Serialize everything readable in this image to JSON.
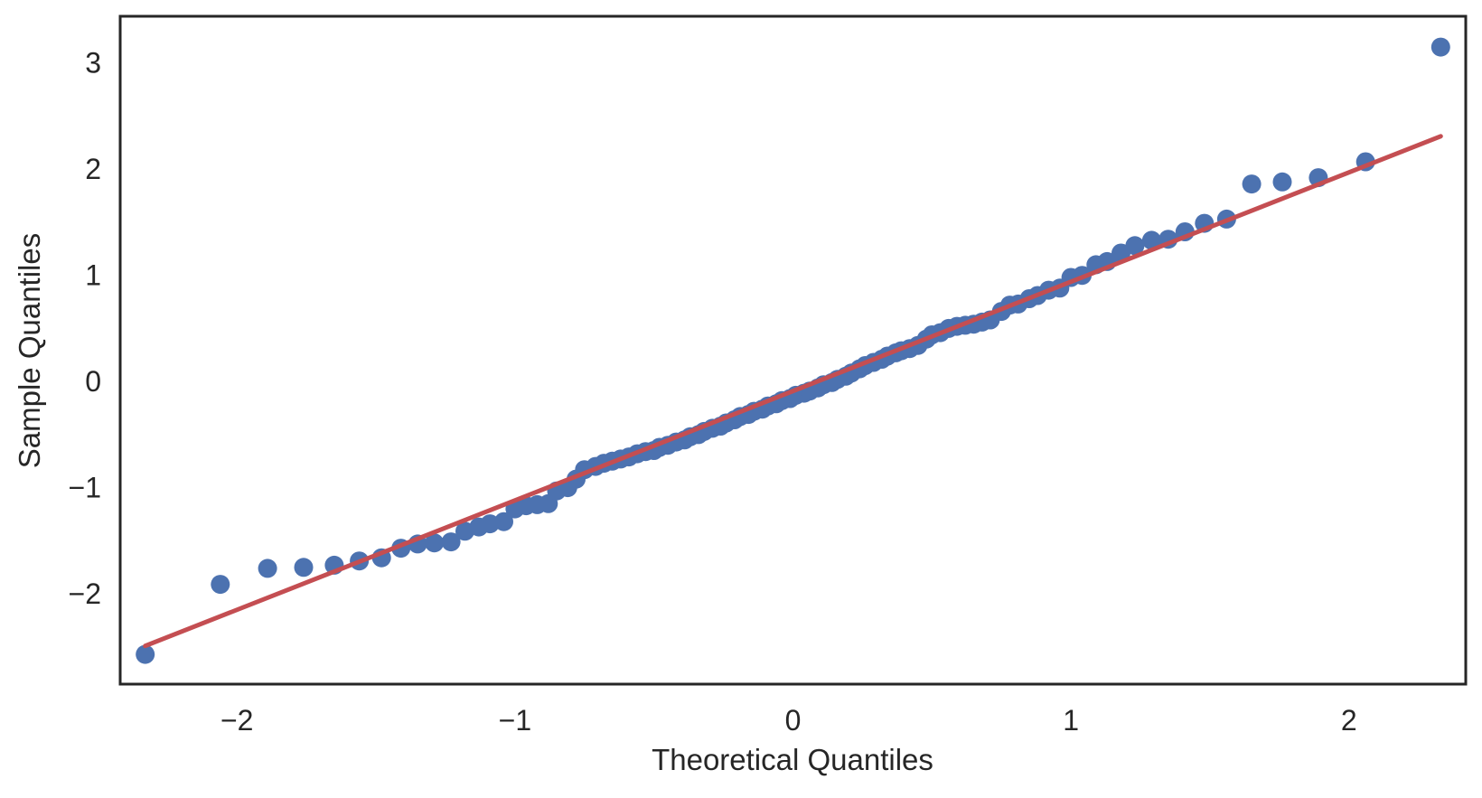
{
  "page": {
    "background": "#ffffff"
  },
  "chart_data": {
    "type": "scatter",
    "title": "",
    "xlabel": "Theoretical Quantiles",
    "ylabel": "Sample Quantiles",
    "xlim": [
      -2.42,
      2.42
    ],
    "ylim": [
      -2.85,
      3.44
    ],
    "grid": false,
    "legend": null,
    "x_ticks": [
      {
        "value": -2,
        "label": "−2"
      },
      {
        "value": -1,
        "label": "−1"
      },
      {
        "value": 0,
        "label": "0"
      },
      {
        "value": 1,
        "label": "1"
      },
      {
        "value": 2,
        "label": "2"
      }
    ],
    "y_ticks": [
      {
        "value": -2,
        "label": "−2"
      },
      {
        "value": -1,
        "label": "−1"
      },
      {
        "value": 0,
        "label": "0"
      },
      {
        "value": 1,
        "label": "1"
      },
      {
        "value": 2,
        "label": "2"
      },
      {
        "value": 3,
        "label": "3"
      }
    ],
    "colors": {
      "points": "#4C72B0",
      "line": "#C44E52",
      "spine": "#262626",
      "text": "#262626",
      "background": "#ffffff"
    },
    "series": [
      {
        "name": "sample-quantiles",
        "kind": "scatter",
        "color": "#4C72B0",
        "marker_radius": 10.5,
        "points": [
          [
            -2.33,
            -2.57
          ],
          [
            -2.06,
            -1.91
          ],
          [
            -1.89,
            -1.76
          ],
          [
            -1.76,
            -1.75
          ],
          [
            -1.65,
            -1.73
          ],
          [
            -1.56,
            -1.69
          ],
          [
            -1.48,
            -1.66
          ],
          [
            -1.41,
            -1.57
          ],
          [
            -1.35,
            -1.53
          ],
          [
            -1.29,
            -1.52
          ],
          [
            -1.23,
            -1.51
          ],
          [
            -1.18,
            -1.41
          ],
          [
            -1.13,
            -1.37
          ],
          [
            -1.09,
            -1.34
          ],
          [
            -1.04,
            -1.32
          ],
          [
            -1.0,
            -1.2
          ],
          [
            -0.96,
            -1.17
          ],
          [
            -0.92,
            -1.16
          ],
          [
            -0.88,
            -1.15
          ],
          [
            -0.85,
            -1.03
          ],
          [
            -0.81,
            -1.0
          ],
          [
            -0.78,
            -0.92
          ],
          [
            -0.75,
            -0.83
          ],
          [
            -0.71,
            -0.8
          ],
          [
            -0.68,
            -0.77
          ],
          [
            -0.65,
            -0.75
          ],
          [
            -0.62,
            -0.73
          ],
          [
            -0.59,
            -0.71
          ],
          [
            -0.56,
            -0.68
          ],
          [
            -0.53,
            -0.66
          ],
          [
            -0.5,
            -0.65
          ],
          [
            -0.48,
            -0.62
          ],
          [
            -0.45,
            -0.6
          ],
          [
            -0.42,
            -0.57
          ],
          [
            -0.39,
            -0.55
          ],
          [
            -0.37,
            -0.52
          ],
          [
            -0.34,
            -0.5
          ],
          [
            -0.32,
            -0.47
          ],
          [
            -0.29,
            -0.44
          ],
          [
            -0.26,
            -0.42
          ],
          [
            -0.24,
            -0.39
          ],
          [
            -0.21,
            -0.36
          ],
          [
            -0.19,
            -0.33
          ],
          [
            -0.16,
            -0.31
          ],
          [
            -0.14,
            -0.28
          ],
          [
            -0.11,
            -0.26
          ],
          [
            -0.09,
            -0.23
          ],
          [
            -0.06,
            -0.21
          ],
          [
            -0.04,
            -0.18
          ],
          [
            -0.01,
            -0.16
          ],
          [
            0.01,
            -0.13
          ],
          [
            0.04,
            -0.11
          ],
          [
            0.06,
            -0.09
          ],
          [
            0.09,
            -0.06
          ],
          [
            0.11,
            -0.03
          ],
          [
            0.14,
            -0.01
          ],
          [
            0.16,
            0.02
          ],
          [
            0.19,
            0.05
          ],
          [
            0.21,
            0.08
          ],
          [
            0.24,
            0.12
          ],
          [
            0.26,
            0.15
          ],
          [
            0.29,
            0.18
          ],
          [
            0.32,
            0.21
          ],
          [
            0.34,
            0.24
          ],
          [
            0.37,
            0.27
          ],
          [
            0.39,
            0.29
          ],
          [
            0.42,
            0.31
          ],
          [
            0.45,
            0.34
          ],
          [
            0.48,
            0.4
          ],
          [
            0.5,
            0.44
          ],
          [
            0.53,
            0.46
          ],
          [
            0.56,
            0.5
          ],
          [
            0.59,
            0.52
          ],
          [
            0.62,
            0.53
          ],
          [
            0.65,
            0.54
          ],
          [
            0.68,
            0.56
          ],
          [
            0.71,
            0.58
          ],
          [
            0.75,
            0.66
          ],
          [
            0.78,
            0.72
          ],
          [
            0.81,
            0.73
          ],
          [
            0.85,
            0.78
          ],
          [
            0.88,
            0.81
          ],
          [
            0.92,
            0.86
          ],
          [
            0.96,
            0.88
          ],
          [
            1.0,
            0.98
          ],
          [
            1.04,
            1.0
          ],
          [
            1.09,
            1.1
          ],
          [
            1.13,
            1.13
          ],
          [
            1.18,
            1.21
          ],
          [
            1.23,
            1.28
          ],
          [
            1.29,
            1.33
          ],
          [
            1.35,
            1.34
          ],
          [
            1.41,
            1.41
          ],
          [
            1.48,
            1.49
          ],
          [
            1.56,
            1.53
          ],
          [
            1.65,
            1.86
          ],
          [
            1.76,
            1.88
          ],
          [
            1.89,
            1.92
          ],
          [
            2.06,
            2.07
          ],
          [
            2.33,
            3.15
          ]
        ]
      },
      {
        "name": "fit-line",
        "kind": "line",
        "color": "#C44E52",
        "stroke_width": 5,
        "x": [
          -2.33,
          2.33
        ],
        "y": [
          -2.49,
          2.31
        ]
      }
    ]
  }
}
